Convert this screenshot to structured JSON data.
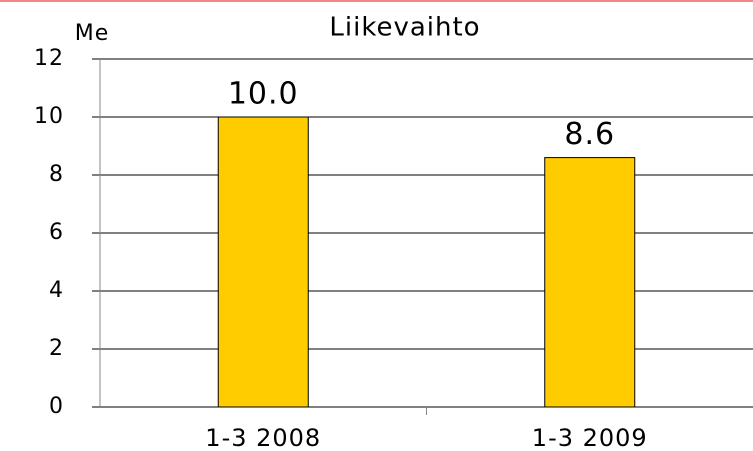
{
  "chart_data": {
    "type": "bar",
    "title": "Liikevaihto",
    "y_label": "Me",
    "categories": [
      "1-3 2008",
      "1-3 2009"
    ],
    "values": [
      10.0,
      8.6
    ],
    "value_labels": [
      "10.0",
      "8.6"
    ],
    "color": "#ffcc00",
    "ylim": [
      0,
      12
    ],
    "yticks": [
      0,
      2,
      4,
      6,
      8,
      10,
      12
    ],
    "grid": true
  }
}
